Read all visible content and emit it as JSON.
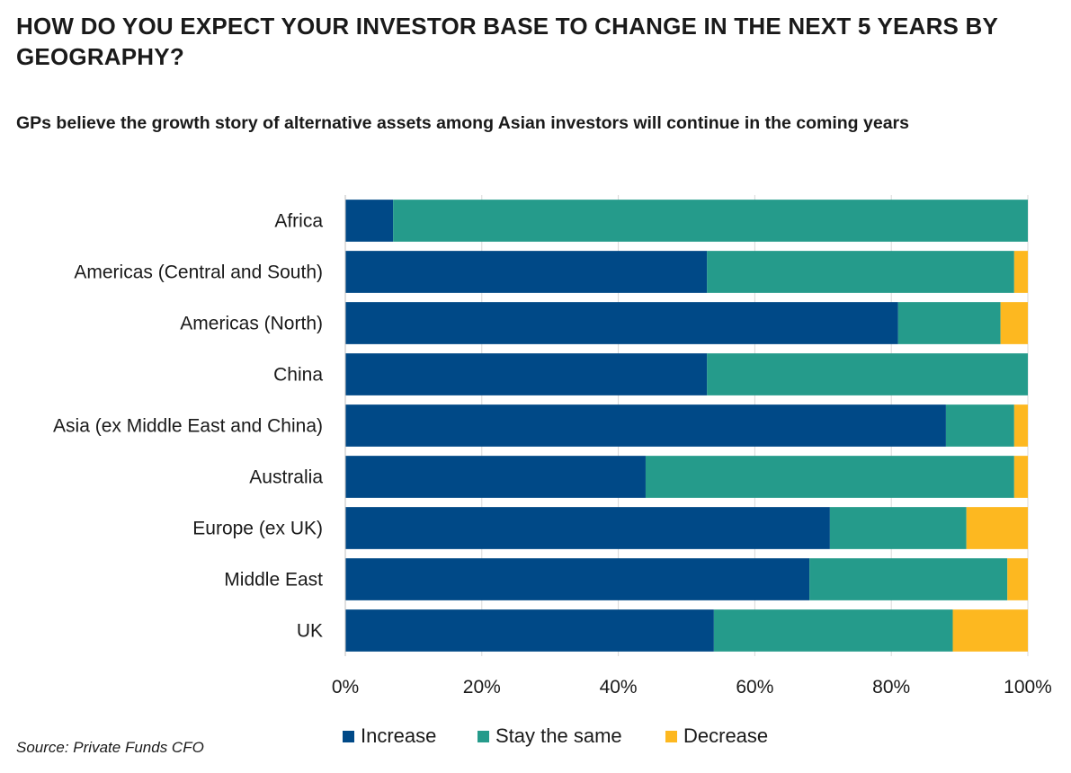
{
  "title": "HOW DO YOU EXPECT YOUR INVESTOR BASE TO CHANGE IN THE NEXT 5 YEARS BY GEOGRAPHY?",
  "subtitle": "GPs believe the growth story of alternative assets among Asian investors will continue in the coming years",
  "source": "Source: Private Funds CFO",
  "legend": [
    {
      "label": "Increase",
      "color": "#004987"
    },
    {
      "label": "Stay the same",
      "color": "#259B8B"
    },
    {
      "label": "Decrease",
      "color": "#FDB820"
    }
  ],
  "chart_data": {
    "type": "bar",
    "orientation": "horizontal",
    "stacked": true,
    "percent_stacked": true,
    "categories": [
      "Africa",
      "Americas (Central and South)",
      "Americas (North)",
      "China",
      "Asia (ex Middle East and China)",
      "Australia",
      "Europe (ex UK)",
      "Middle East",
      "UK"
    ],
    "series": [
      {
        "name": "Increase",
        "color": "#004987",
        "values": [
          7,
          53,
          81,
          53,
          88,
          44,
          71,
          68,
          54
        ]
      },
      {
        "name": "Stay the same",
        "color": "#259B8B",
        "values": [
          93,
          45,
          15,
          47,
          10,
          54,
          20,
          29,
          35
        ]
      },
      {
        "name": "Decrease",
        "color": "#FDB820",
        "values": [
          0,
          2,
          4,
          0,
          2,
          2,
          9,
          3,
          11
        ]
      }
    ],
    "xlim": [
      0,
      100
    ],
    "xticks": [
      "0%",
      "20%",
      "40%",
      "60%",
      "80%",
      "100%"
    ],
    "grid": true,
    "legend_position": "bottom"
  }
}
